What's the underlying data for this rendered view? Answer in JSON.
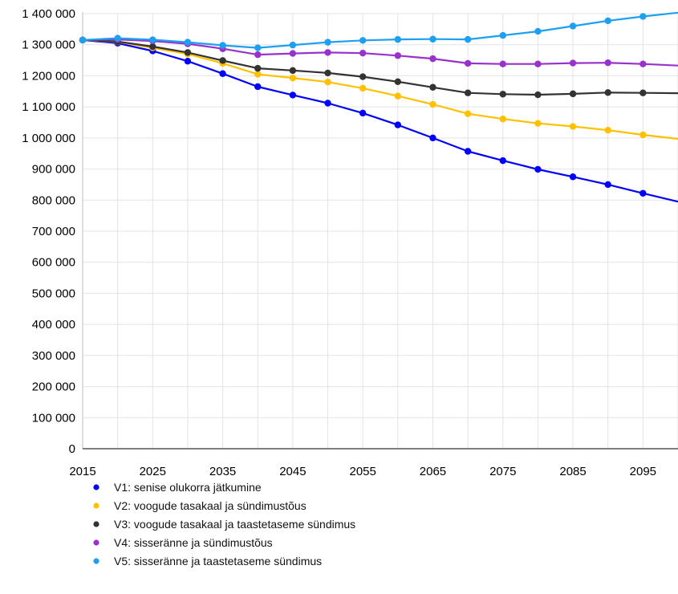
{
  "chart_data": {
    "type": "line",
    "title": "",
    "xlabel": "",
    "ylabel": "",
    "ylim": [
      0,
      1400000
    ],
    "xlim": [
      2015,
      2100
    ],
    "grid": true,
    "legend_position": "bottom",
    "y_ticks": [
      "0",
      "100 000",
      "200 000",
      "300 000",
      "400 000",
      "500 000",
      "600 000",
      "700 000",
      "800 000",
      "900 000",
      "1 000 000",
      "1 100 000",
      "1 200 000",
      "1 300 000",
      "1 400 000"
    ],
    "x_ticks": [
      "2015",
      "2025",
      "2035",
      "2045",
      "2055",
      "2065",
      "2075",
      "2085",
      "2095"
    ],
    "x": [
      2015,
      2020,
      2025,
      2030,
      2035,
      2040,
      2045,
      2050,
      2055,
      2060,
      2065,
      2070,
      2075,
      2080,
      2085,
      2090,
      2095,
      2100
    ],
    "series": [
      {
        "name": "V1: senise olukorra jätkumine",
        "color": "#0000ff",
        "values": [
          1315000,
          1305000,
          1280000,
          1247000,
          1207000,
          1165000,
          1138000,
          1112000,
          1080000,
          1042000,
          1000000,
          957000,
          927000,
          899000,
          875000,
          850000,
          822000,
          795000
        ]
      },
      {
        "name": "V2: voogude tasakaal ja sündimustõus",
        "color": "#ffc000",
        "values": [
          1315000,
          1309000,
          1290000,
          1270000,
          1240000,
          1205000,
          1193000,
          1180000,
          1160000,
          1135000,
          1108000,
          1078000,
          1061000,
          1047000,
          1037000,
          1025000,
          1010000,
          997000
        ]
      },
      {
        "name": "V3: voogude tasakaal ja taastetaseme sündimus",
        "color": "#333333",
        "values": [
          1315000,
          1310000,
          1294000,
          1275000,
          1249000,
          1224000,
          1217000,
          1209000,
          1197000,
          1181000,
          1163000,
          1145000,
          1141000,
          1139000,
          1142000,
          1146000,
          1145000,
          1144000
        ]
      },
      {
        "name": "V4: sisseränne ja sündimustõus",
        "color": "#9932cc",
        "values": [
          1315000,
          1317000,
          1312000,
          1303000,
          1287000,
          1268000,
          1272000,
          1275000,
          1273000,
          1265000,
          1255000,
          1240000,
          1238000,
          1238000,
          1241000,
          1242000,
          1238000,
          1233000
        ]
      },
      {
        "name": "V5: sisseränne ja taastetaseme sündimus",
        "color": "#1ea0f0",
        "values": [
          1315000,
          1321000,
          1316000,
          1308000,
          1298000,
          1290000,
          1299000,
          1308000,
          1314000,
          1317000,
          1318000,
          1317000,
          1330000,
          1343000,
          1360000,
          1377000,
          1391000,
          1403000
        ]
      }
    ]
  }
}
